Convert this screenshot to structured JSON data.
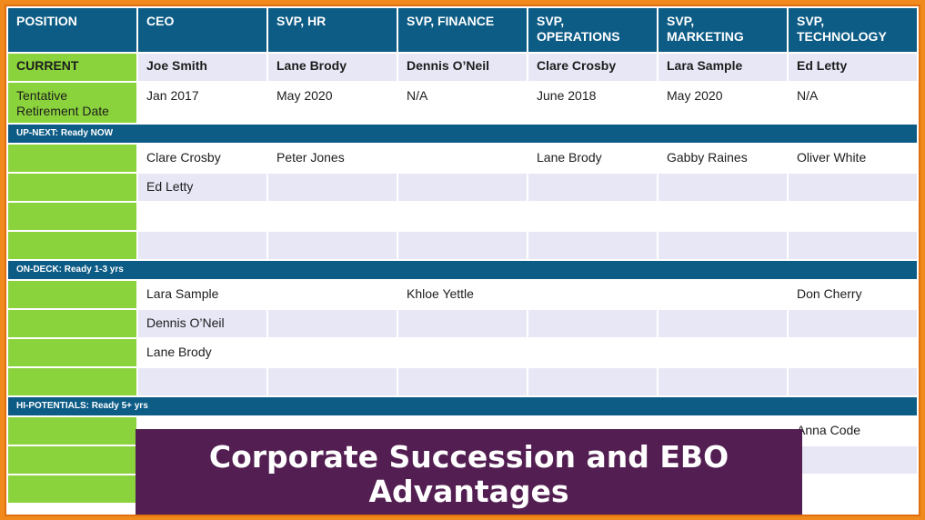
{
  "header": [
    "POSITION",
    "CEO",
    "SVP, HR",
    "SVP, FINANCE",
    "SVP,\nOPERATIONS",
    "SVP,\nMARKETING",
    "SVP,\nTECHNOLOGY"
  ],
  "current": {
    "label": "CURRENT",
    "names": [
      "Joe Smith",
      "Lane Brody",
      "Dennis O’Neil",
      "Clare Crosby",
      "Lara Sample",
      "Ed Letty"
    ]
  },
  "retirement": {
    "label": "Tentative Retirement Date",
    "dates": [
      "Jan 2017",
      "May 2020",
      "N/A",
      "June 2018",
      "May 2020",
      "N/A"
    ]
  },
  "sections": {
    "up_next": {
      "title": "UP-NEXT: Ready NOW",
      "rows": [
        [
          "Clare Crosby",
          "Peter Jones",
          "",
          "Lane Brody",
          "Gabby Raines",
          "Oliver White"
        ],
        [
          "Ed Letty",
          "",
          "",
          "",
          "",
          ""
        ],
        [
          "",
          "",
          "",
          "",
          "",
          ""
        ],
        [
          "",
          "",
          "",
          "",
          "",
          ""
        ]
      ]
    },
    "on_deck": {
      "title": "ON-DECK: Ready 1-3 yrs",
      "rows": [
        [
          "Lara Sample",
          "",
          "Khloe Yettle",
          "",
          "",
          "Don Cherry"
        ],
        [
          "Dennis O’Neil",
          "",
          "",
          "",
          "",
          ""
        ],
        [
          "Lane Brody",
          "",
          "",
          "",
          "",
          ""
        ],
        [
          "",
          "",
          "",
          "",
          "",
          ""
        ]
      ]
    },
    "hi_potentials": {
      "title": "HI-POTENTIALS: Ready 5+ yrs",
      "rows": [
        [
          "",
          "",
          "",
          "",
          "",
          "Anna Code"
        ],
        [
          "",
          "",
          "",
          "",
          "",
          ""
        ],
        [
          "",
          "",
          "",
          "",
          "",
          ""
        ]
      ]
    }
  },
  "banner": "Corporate Succession and EBO Advantages"
}
